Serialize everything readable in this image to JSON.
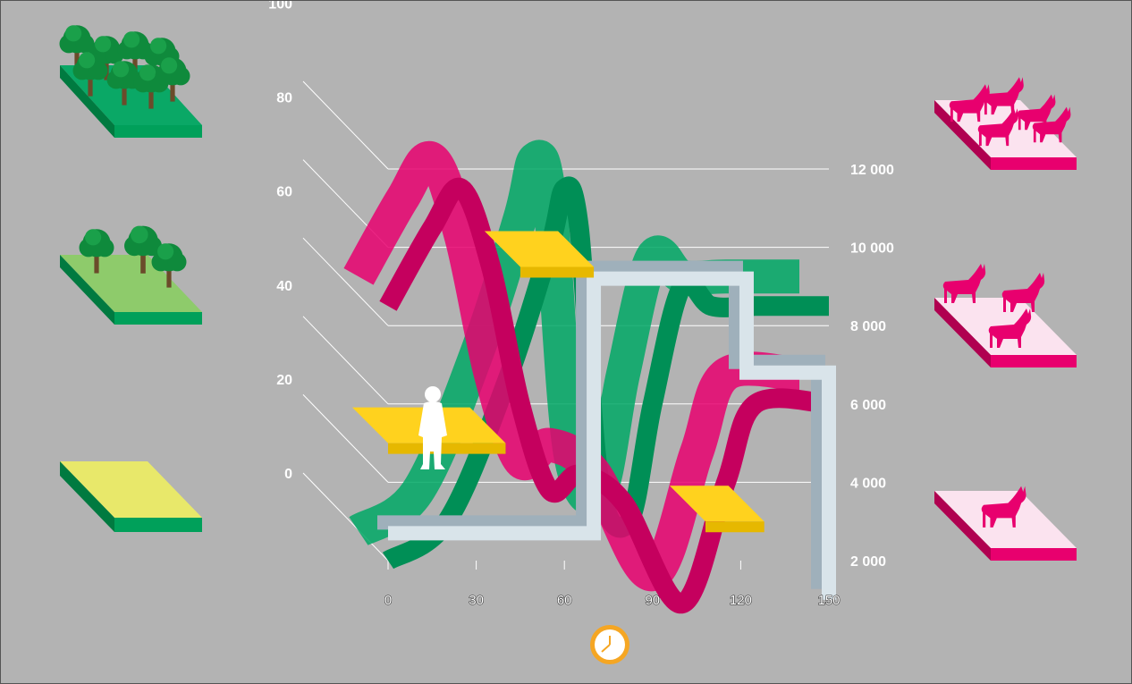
{
  "colors": {
    "background": "#b3b3b3",
    "forest": "#00a865",
    "goats": "#e8006e",
    "human": "#ffd21e",
    "water": "#d9e4ea",
    "grid": "#ffffff",
    "clock": "#f5a623"
  },
  "icons": {
    "left": [
      "dense-forest-icon",
      "sparse-forest-icon",
      "bare-grassland-icon"
    ],
    "right": [
      "large-goat-herd-icon",
      "medium-goat-herd-icon",
      "single-goat-icon"
    ],
    "bottom": "clock-icon",
    "figure": "human-silhouette-icon"
  },
  "chart_data": {
    "type": "line",
    "title": "",
    "x": [
      0,
      30,
      60,
      90,
      120,
      150
    ],
    "x_tick_labels": [
      "0",
      "30",
      "60",
      "90",
      "120",
      "150"
    ],
    "y_left_ticks": [
      "0",
      "20",
      "40",
      "60",
      "80",
      "100"
    ],
    "y_left_range": [
      0,
      100
    ],
    "y_right_ticks": [
      "2 000",
      "4 000",
      "6 000",
      "8 000",
      "10 000",
      "12 000"
    ],
    "y_right_range": [
      2000,
      12000
    ],
    "xlabel": "",
    "ylabel": "",
    "grid": true,
    "series": [
      {
        "color": "#00a865",
        "x": [
          0,
          20,
          40,
          55,
          60,
          65,
          72,
          82,
          90,
          100,
          110,
          125,
          150
        ],
        "values": [
          2000,
          3000,
          6500,
          10000,
          11500,
          10500,
          4000,
          3000,
          6000,
          9000,
          8500,
          8500,
          8500
        ]
      },
      {
        "color": "#e8006e",
        "x": [
          0,
          15,
          25,
          35,
          45,
          55,
          65,
          80,
          100,
          115,
          125,
          150
        ],
        "values": [
          8500,
          10500,
          11500,
          9500,
          6000,
          3800,
          4200,
          3500,
          900,
          4000,
          6000,
          6000
        ]
      },
      {
        "color": "#d9e4ea",
        "style": "step",
        "x": [
          0,
          70,
          70,
          122,
          122,
          150,
          150
        ],
        "values": [
          2700,
          2700,
          9200,
          9200,
          6800,
          6800,
          1000
        ]
      }
    ],
    "bars": [
      {
        "color": "#ffd21e",
        "x_start": 0,
        "x_end": 40,
        "value": 5000
      },
      {
        "color": "#ffd21e",
        "x_start": 45,
        "x_end": 70,
        "value": 9500
      },
      {
        "color": "#ffd21e",
        "x_start": 108,
        "x_end": 128,
        "value": 3000
      }
    ]
  }
}
